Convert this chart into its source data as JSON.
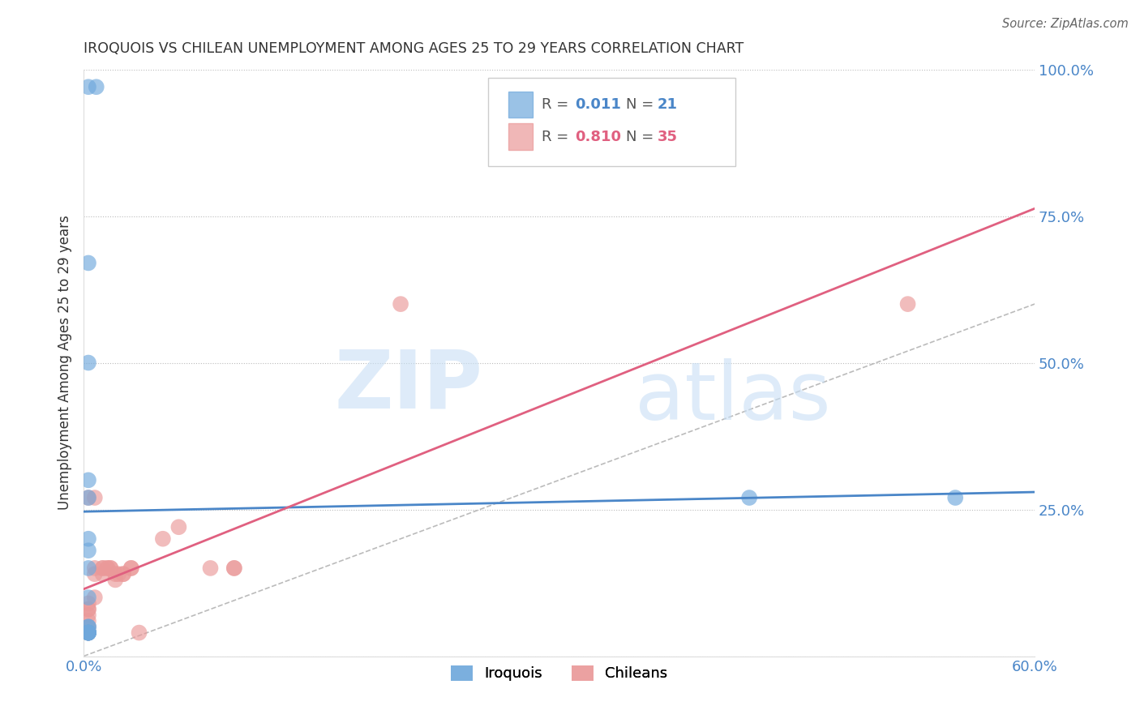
{
  "title": "IROQUOIS VS CHILEAN UNEMPLOYMENT AMONG AGES 25 TO 29 YEARS CORRELATION CHART",
  "source": "Source: ZipAtlas.com",
  "ylabel": "Unemployment Among Ages 25 to 29 years",
  "xlim": [
    0.0,
    0.6
  ],
  "ylim": [
    0.0,
    1.0
  ],
  "xticks": [
    0.0,
    0.1,
    0.2,
    0.3,
    0.4,
    0.5,
    0.6
  ],
  "xticklabels": [
    "0.0%",
    "",
    "",
    "",
    "",
    "",
    "60.0%"
  ],
  "yticks": [
    0.0,
    0.25,
    0.5,
    0.75,
    1.0
  ],
  "yticklabels": [
    "",
    "25.0%",
    "50.0%",
    "75.0%",
    "100.0%"
  ],
  "iroquois_color": "#6fa8dc",
  "chilean_color": "#ea9999",
  "iroquois_R": 0.011,
  "iroquois_N": 21,
  "chilean_R": 0.81,
  "chilean_N": 35,
  "legend_labels": [
    "Iroquois",
    "Chileans"
  ],
  "watermark_zip": "ZIP",
  "watermark_atlas": "atlas",
  "iroquois_x": [
    0.003,
    0.008,
    0.003,
    0.003,
    0.003,
    0.003,
    0.003,
    0.003,
    0.003,
    0.003,
    0.003,
    0.003,
    0.003,
    0.003,
    0.003,
    0.003,
    0.003,
    0.003,
    0.003,
    0.42,
    0.55
  ],
  "iroquois_y": [
    0.97,
    0.97,
    0.67,
    0.5,
    0.3,
    0.27,
    0.2,
    0.18,
    0.15,
    0.1,
    0.05,
    0.05,
    0.04,
    0.04,
    0.04,
    0.04,
    0.04,
    0.04,
    0.04,
    0.27,
    0.27
  ],
  "chilean_x": [
    0.003,
    0.003,
    0.003,
    0.003,
    0.003,
    0.003,
    0.003,
    0.003,
    0.003,
    0.007,
    0.007,
    0.007,
    0.007,
    0.012,
    0.012,
    0.012,
    0.015,
    0.015,
    0.017,
    0.017,
    0.02,
    0.02,
    0.022,
    0.025,
    0.025,
    0.03,
    0.03,
    0.035,
    0.05,
    0.06,
    0.08,
    0.095,
    0.095,
    0.2,
    0.52
  ],
  "chilean_y": [
    0.04,
    0.04,
    0.05,
    0.06,
    0.07,
    0.08,
    0.08,
    0.09,
    0.27,
    0.1,
    0.14,
    0.15,
    0.27,
    0.14,
    0.15,
    0.15,
    0.15,
    0.15,
    0.15,
    0.15,
    0.13,
    0.14,
    0.14,
    0.14,
    0.14,
    0.15,
    0.15,
    0.04,
    0.2,
    0.22,
    0.15,
    0.15,
    0.15,
    0.6,
    0.6
  ],
  "bg_color": "#ffffff",
  "grid_color": "#bbbbbb",
  "axis_color": "#4a86c8",
  "title_color": "#333333",
  "legend_R_color_iroquois": "#4a86c8",
  "legend_R_color_chilean": "#e06080"
}
